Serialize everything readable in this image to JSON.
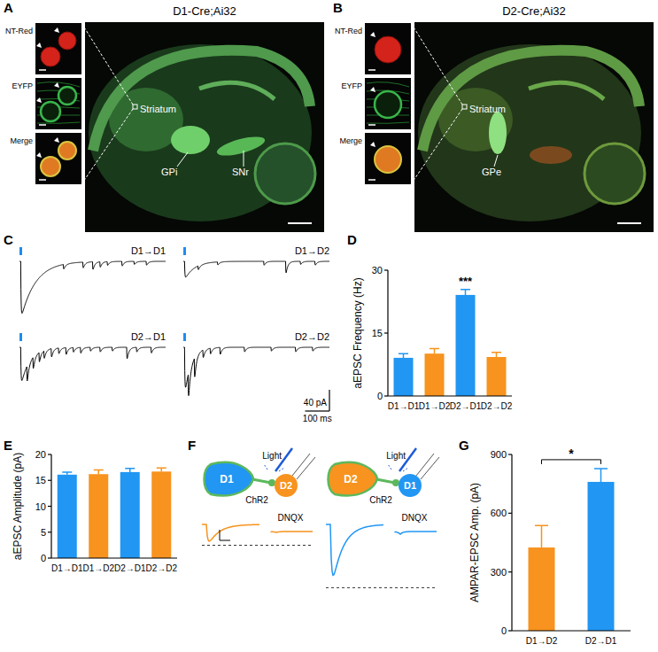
{
  "panel_letters": [
    "A",
    "B",
    "C",
    "D",
    "E",
    "F",
    "G"
  ],
  "panel_a": {
    "title": "D1-Cre;Ai32",
    "inset_labels": [
      "NT-Red",
      "EYFP",
      "Merge"
    ],
    "region_labels": [
      "Striatum",
      "GPi",
      "SNr"
    ]
  },
  "panel_b": {
    "title": "D2-Cre;Ai32",
    "inset_labels": [
      "NT-Red",
      "EYFP",
      "Merge"
    ],
    "region_labels": [
      "Striatum",
      "GPe"
    ]
  },
  "panel_c": {
    "window_ms": 600,
    "light_color": "#1e8cf0",
    "scale_bar": {
      "amplitude": {
        "value": 40,
        "label": "40 pA"
      },
      "time": {
        "value": 100,
        "label": "100 ms"
      }
    },
    "traces": [
      {
        "label": "D1→D1",
        "evoked": {
          "amplitude": 110,
          "tau": 60
        },
        "events": [
          [
            180,
            12
          ],
          [
            260,
            15
          ],
          [
            300,
            20
          ],
          [
            330,
            14
          ],
          [
            360,
            10
          ],
          [
            420,
            12
          ],
          [
            470,
            8
          ],
          [
            520,
            10
          ]
        ]
      },
      {
        "label": "D1→D2",
        "evoked": {
          "amplitude": 35,
          "tau": 40
        },
        "events": [
          [
            60,
            10
          ],
          [
            140,
            8
          ],
          [
            330,
            10
          ],
          [
            420,
            30
          ],
          [
            480,
            8
          ],
          [
            540,
            10
          ]
        ]
      },
      {
        "label": "D2→D1",
        "evoked": {
          "amplitude": 75,
          "tau": 35
        },
        "events": [
          [
            30,
            40
          ],
          [
            55,
            30
          ],
          [
            80,
            25
          ],
          [
            100,
            20
          ],
          [
            130,
            22
          ],
          [
            160,
            15
          ],
          [
            190,
            18
          ],
          [
            220,
            12
          ],
          [
            250,
            15
          ],
          [
            290,
            10
          ],
          [
            330,
            12
          ],
          [
            380,
            10
          ],
          [
            440,
            30
          ],
          [
            480,
            12
          ],
          [
            540,
            15
          ]
        ]
      },
      {
        "label": "D2→D2",
        "evoked": {
          "amplitude": 95,
          "tau": 25
        },
        "events": [
          [
            20,
            60
          ],
          [
            45,
            50
          ],
          [
            80,
            20
          ],
          [
            110,
            15
          ],
          [
            150,
            18
          ],
          [
            250,
            12
          ],
          [
            360,
            10
          ],
          [
            460,
            12
          ],
          [
            530,
            10
          ]
        ]
      }
    ]
  },
  "panel_f": {
    "cell_colors": {
      "D1": "#2196f3",
      "D2": "#f7931e"
    },
    "opsin_color": "#5cb85c",
    "light_color": "#1e5bd8",
    "diagrams": [
      {
        "pre": "D1",
        "post": "D2",
        "light": "Light",
        "opsin": "ChR2",
        "drug": "DNQX"
      },
      {
        "pre": "D2",
        "post": "D1",
        "light": "Light",
        "opsin": "ChR2",
        "drug": "DNQX"
      }
    ]
  },
  "chart_data": [
    {
      "type": "bar",
      "y_label": "aEPSC Frequency (Hz)",
      "categories": [
        "D1→D1",
        "D1→D2",
        "D2→D1",
        "D2→D2"
      ],
      "values": [
        9.1,
        10.1,
        24.1,
        9.3
      ],
      "errors": [
        1.0,
        1.2,
        1.3,
        1.1
      ],
      "colors": [
        "#2196f3",
        "#f7931e",
        "#2196f3",
        "#f7931e"
      ],
      "ylim": [
        0,
        30
      ],
      "yticks": [
        0,
        15,
        30
      ],
      "annotations": [
        {
          "text": "***",
          "categories": [
            2
          ]
        }
      ]
    },
    {
      "type": "bar",
      "y_label": "aEPSC Amplitude (pA)",
      "categories": [
        "D1→D1",
        "D1→D2",
        "D2→D1",
        "D2→D2"
      ],
      "values": [
        16.1,
        16.2,
        16.6,
        16.7
      ],
      "errors": [
        0.5,
        0.8,
        0.7,
        0.7
      ],
      "colors": [
        "#2196f3",
        "#f7931e",
        "#2196f3",
        "#f7931e"
      ],
      "ylim": [
        0,
        20
      ],
      "yticks": [
        0,
        5,
        10,
        15,
        20
      ]
    },
    {
      "type": "bar",
      "y_label": "AMPAR-EPSC Amp. (pA)",
      "categories": [
        "D1→D2",
        "D2→D1"
      ],
      "values": [
        425,
        760
      ],
      "errors": [
        112,
        68
      ],
      "colors": [
        "#f7931e",
        "#2196f3"
      ],
      "ylim": [
        0,
        900
      ],
      "yticks": [
        0,
        300,
        600,
        900
      ],
      "annotations": [
        {
          "text": "*",
          "categories": [
            0,
            1
          ]
        }
      ]
    }
  ]
}
